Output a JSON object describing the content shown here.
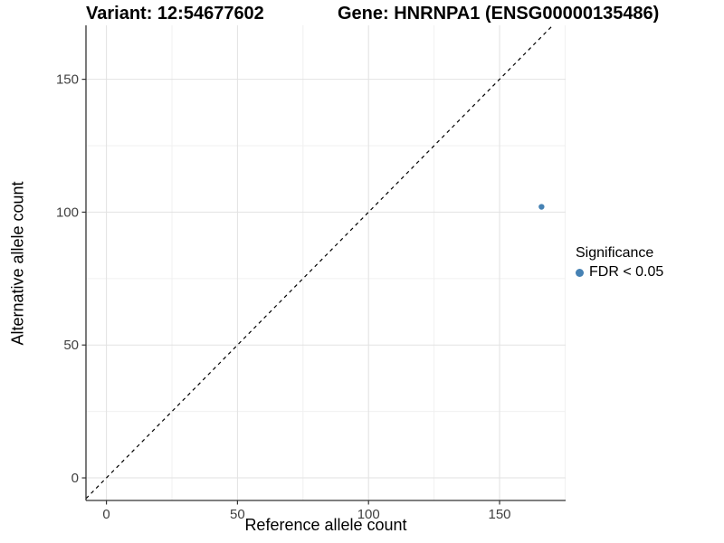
{
  "chart_data": {
    "type": "scatter",
    "title_left": "Variant: 12:54677602",
    "title_right": "Gene: HNRNPA1 (ENSG00000135486)",
    "xlabel": "Reference allele count",
    "ylabel": "Alternative allele count",
    "x_ticks": [
      0,
      50,
      100,
      150
    ],
    "y_ticks": [
      0,
      50,
      100,
      150
    ],
    "x_minor_ticks": [
      25,
      75,
      125,
      175
    ],
    "y_minor_ticks": [
      25,
      75,
      125
    ],
    "xlim": [
      -7.8,
      175.2
    ],
    "ylim": [
      -8.5,
      170.3
    ],
    "grid": true,
    "series": [
      {
        "name": "FDR < 0.05",
        "points": [
          {
            "x": 166,
            "y": 102
          }
        ],
        "color": "#4682B4"
      }
    ],
    "identity_line": {
      "shown": true,
      "style": "dashed",
      "color": "#000000"
    },
    "legend": {
      "title": "Significance",
      "position": "right",
      "items": [
        {
          "label": "FDR < 0.05",
          "color": "#4682B4"
        }
      ]
    },
    "colors": {
      "background": "#ffffff",
      "grid_major": "#e2e2e2",
      "grid_minor": "#f0f0f0",
      "axis_line": "#333333",
      "tick_text": "#404040",
      "point": "#4682B4"
    }
  }
}
